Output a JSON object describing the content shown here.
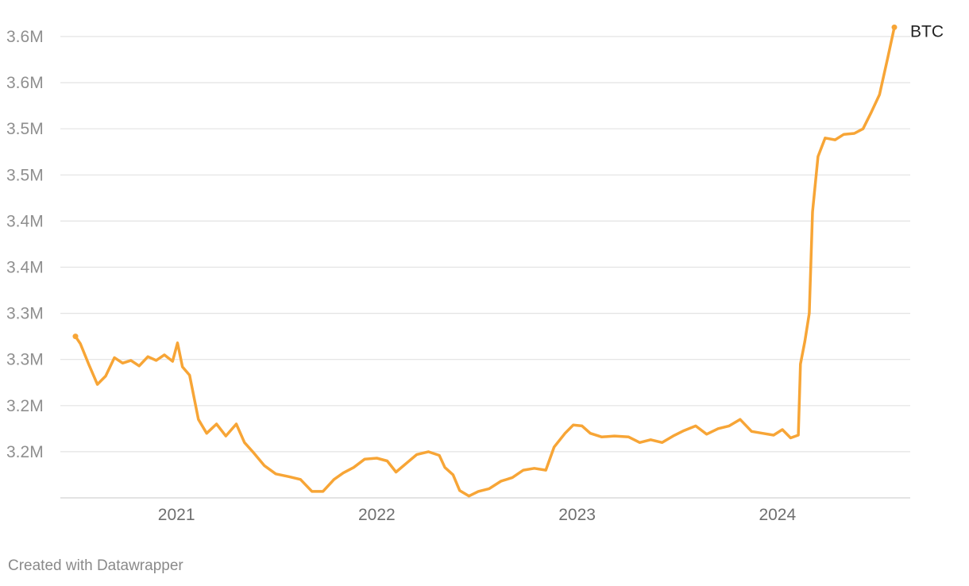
{
  "chart_data": {
    "type": "line",
    "title": "",
    "xlabel": "",
    "ylabel": "",
    "grid": true,
    "legend": "inline-end-label",
    "x_range": [
      "2020-07-01",
      "2024-08-01"
    ],
    "y_ticks": [
      3180000,
      3230000,
      3280000,
      3330000,
      3380000,
      3430000,
      3480000,
      3530000,
      3580000,
      3630000
    ],
    "y_tick_labels": [
      "3.2M",
      "3.2M",
      "3.3M",
      "3.3M",
      "3.4M",
      "3.4M",
      "3.5M",
      "3.5M",
      "3.6M",
      "3.6M"
    ],
    "x_ticks": [
      "2021-01-01",
      "2022-01-01",
      "2023-01-01",
      "2024-01-01"
    ],
    "x_tick_labels": [
      "2021",
      "2022",
      "2023",
      "2024"
    ],
    "series": [
      {
        "name": "BTC",
        "color": "#f7a536",
        "points": [
          [
            "2020-07-01",
            3305000
          ],
          [
            "2020-07-10",
            3297000
          ],
          [
            "2020-07-25",
            3275000
          ],
          [
            "2020-08-10",
            3253000
          ],
          [
            "2020-08-25",
            3262000
          ],
          [
            "2020-09-10",
            3282000
          ],
          [
            "2020-09-25",
            3276000
          ],
          [
            "2020-10-10",
            3279000
          ],
          [
            "2020-10-25",
            3273000
          ],
          [
            "2020-11-10",
            3283000
          ],
          [
            "2020-11-25",
            3279000
          ],
          [
            "2020-12-10",
            3285000
          ],
          [
            "2020-12-25",
            3278000
          ],
          [
            "2021-01-03",
            3298000
          ],
          [
            "2021-01-12",
            3272000
          ],
          [
            "2021-01-25",
            3263000
          ],
          [
            "2021-02-10",
            3215000
          ],
          [
            "2021-02-25",
            3200000
          ],
          [
            "2021-03-15",
            3210000
          ],
          [
            "2021-04-01",
            3197000
          ],
          [
            "2021-04-20",
            3210000
          ],
          [
            "2021-05-05",
            3190000
          ],
          [
            "2021-05-20",
            3180000
          ],
          [
            "2021-06-10",
            3165000
          ],
          [
            "2021-07-01",
            3156000
          ],
          [
            "2021-07-25",
            3153000
          ],
          [
            "2021-08-15",
            3150000
          ],
          [
            "2021-09-05",
            3137000
          ],
          [
            "2021-09-25",
            3137000
          ],
          [
            "2021-10-15",
            3150000
          ],
          [
            "2021-11-01",
            3157000
          ],
          [
            "2021-11-20",
            3163000
          ],
          [
            "2021-12-10",
            3172000
          ],
          [
            "2022-01-01",
            3173000
          ],
          [
            "2022-01-20",
            3170000
          ],
          [
            "2022-02-05",
            3158000
          ],
          [
            "2022-02-25",
            3168000
          ],
          [
            "2022-03-15",
            3177000
          ],
          [
            "2022-04-05",
            3180000
          ],
          [
            "2022-04-25",
            3176000
          ],
          [
            "2022-05-05",
            3163000
          ],
          [
            "2022-05-20",
            3155000
          ],
          [
            "2022-06-01",
            3138000
          ],
          [
            "2022-06-18",
            3132000
          ],
          [
            "2022-07-05",
            3137000
          ],
          [
            "2022-07-25",
            3140000
          ],
          [
            "2022-08-15",
            3148000
          ],
          [
            "2022-09-05",
            3152000
          ],
          [
            "2022-09-25",
            3160000
          ],
          [
            "2022-10-15",
            3162000
          ],
          [
            "2022-11-05",
            3160000
          ],
          [
            "2022-11-20",
            3185000
          ],
          [
            "2022-12-10",
            3200000
          ],
          [
            "2022-12-25",
            3209000
          ],
          [
            "2023-01-10",
            3208000
          ],
          [
            "2023-01-25",
            3200000
          ],
          [
            "2023-02-15",
            3196000
          ],
          [
            "2023-03-10",
            3197000
          ],
          [
            "2023-04-05",
            3196000
          ],
          [
            "2023-04-25",
            3190000
          ],
          [
            "2023-05-15",
            3193000
          ],
          [
            "2023-06-05",
            3190000
          ],
          [
            "2023-06-25",
            3197000
          ],
          [
            "2023-07-15",
            3203000
          ],
          [
            "2023-08-05",
            3208000
          ],
          [
            "2023-08-25",
            3199000
          ],
          [
            "2023-09-15",
            3205000
          ],
          [
            "2023-10-05",
            3208000
          ],
          [
            "2023-10-25",
            3215000
          ],
          [
            "2023-11-15",
            3202000
          ],
          [
            "2023-12-05",
            3200000
          ],
          [
            "2023-12-25",
            3198000
          ],
          [
            "2024-01-10",
            3204000
          ],
          [
            "2024-01-25",
            3195000
          ],
          [
            "2024-02-08",
            3198000
          ],
          [
            "2024-02-12",
            3275000
          ],
          [
            "2024-02-20",
            3300000
          ],
          [
            "2024-02-28",
            3330000
          ],
          [
            "2024-03-05",
            3440000
          ],
          [
            "2024-03-15",
            3500000
          ],
          [
            "2024-03-28",
            3520000
          ],
          [
            "2024-04-15",
            3518000
          ],
          [
            "2024-05-01",
            3524000
          ],
          [
            "2024-05-20",
            3525000
          ],
          [
            "2024-06-05",
            3530000
          ],
          [
            "2024-06-20",
            3548000
          ],
          [
            "2024-07-05",
            3567000
          ],
          [
            "2024-07-20",
            3607000
          ],
          [
            "2024-08-01",
            3640000
          ]
        ]
      }
    ]
  },
  "footer": {
    "credit": "Created with Datawrapper"
  }
}
